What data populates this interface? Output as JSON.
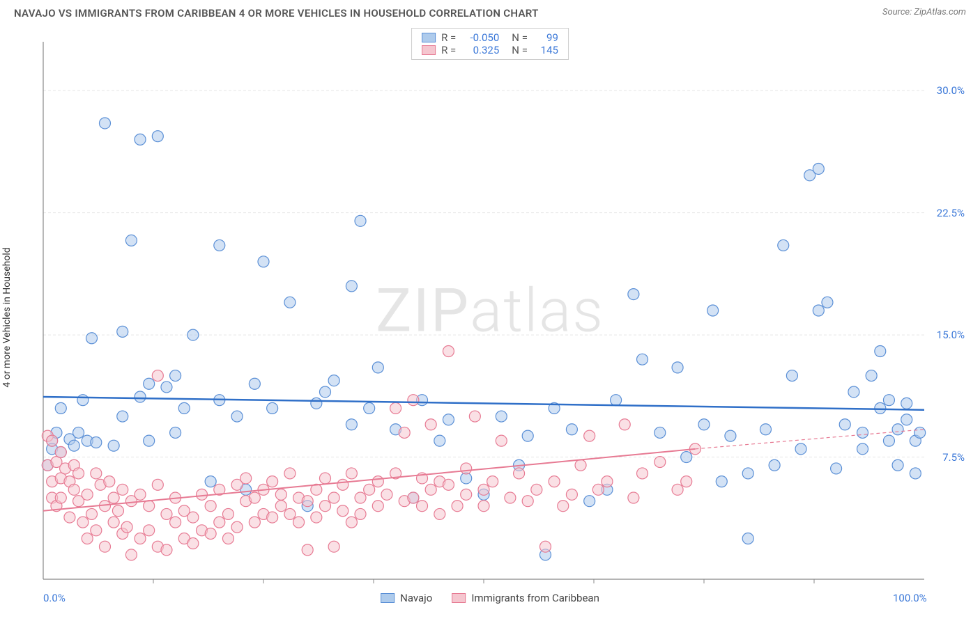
{
  "title": "NAVAJO VS IMMIGRANTS FROM CARIBBEAN 4 OR MORE VEHICLES IN HOUSEHOLD CORRELATION CHART",
  "source": "Source: ZipAtlas.com",
  "ylabel": "4 or more Vehicles in Household",
  "watermark": {
    "bold": "ZIP",
    "thin": "atlas"
  },
  "chart": {
    "type": "scatter",
    "xlim": [
      0,
      100
    ],
    "ylim": [
      0,
      33
    ],
    "xticks": [
      0,
      100
    ],
    "xtick_labels": [
      "0.0%",
      "100.0%"
    ],
    "yticks": [
      7.5,
      15.0,
      22.5,
      30.0
    ],
    "ytick_labels": [
      "7.5%",
      "15.0%",
      "22.5%",
      "30.0%"
    ],
    "grid_color": "#e5e5e5",
    "grid_dash": "4,3",
    "axis_color": "#888",
    "background_color": "#ffffff",
    "marker_radius": 8,
    "marker_opacity": 0.55,
    "marker_stroke_width": 1.2,
    "series": [
      {
        "name": "Navajo",
        "fill_color": "#aecbec",
        "stroke_color": "#5a8fd6",
        "line_color": "#2f6fc8",
        "line_width": 2.5,
        "trend": {
          "x1": 0,
          "y1": 11.2,
          "x2": 100,
          "y2": 10.4
        },
        "r_value": "-0.050",
        "n_value": "99",
        "points": [
          [
            1,
            8.5
          ],
          [
            1,
            8.0
          ],
          [
            1.5,
            9.0
          ],
          [
            0.5,
            7.0
          ],
          [
            2,
            7.8
          ],
          [
            2,
            10.5
          ],
          [
            3,
            8.6
          ],
          [
            3.5,
            8.2
          ],
          [
            4,
            9.0
          ],
          [
            4.5,
            11.0
          ],
          [
            5,
            8.5
          ],
          [
            5.5,
            14.8
          ],
          [
            6,
            8.4
          ],
          [
            7,
            28.0
          ],
          [
            8,
            8.2
          ],
          [
            9,
            10.0
          ],
          [
            9,
            15.2
          ],
          [
            10,
            20.8
          ],
          [
            11,
            27.0
          ],
          [
            11,
            11.2
          ],
          [
            12,
            8.5
          ],
          [
            12,
            12.0
          ],
          [
            13,
            27.2
          ],
          [
            14,
            11.8
          ],
          [
            15,
            9.0
          ],
          [
            15,
            12.5
          ],
          [
            16,
            10.5
          ],
          [
            17,
            15.0
          ],
          [
            19,
            6.0
          ],
          [
            20,
            20.5
          ],
          [
            20,
            11.0
          ],
          [
            22,
            10.0
          ],
          [
            23,
            5.5
          ],
          [
            24,
            12.0
          ],
          [
            25,
            19.5
          ],
          [
            26,
            10.5
          ],
          [
            28,
            17.0
          ],
          [
            30,
            4.5
          ],
          [
            31,
            10.8
          ],
          [
            32,
            11.5
          ],
          [
            33,
            12.2
          ],
          [
            35,
            9.5
          ],
          [
            35,
            18.0
          ],
          [
            36,
            22.0
          ],
          [
            37,
            10.5
          ],
          [
            38,
            13.0
          ],
          [
            40,
            9.2
          ],
          [
            42,
            5.0
          ],
          [
            43,
            11.0
          ],
          [
            45,
            8.5
          ],
          [
            46,
            9.8
          ],
          [
            48,
            6.2
          ],
          [
            50,
            5.2
          ],
          [
            52,
            10.0
          ],
          [
            54,
            7.0
          ],
          [
            55,
            8.8
          ],
          [
            57,
            1.5
          ],
          [
            58,
            10.5
          ],
          [
            60,
            9.2
          ],
          [
            62,
            4.8
          ],
          [
            64,
            5.5
          ],
          [
            65,
            11.0
          ],
          [
            67,
            17.5
          ],
          [
            68,
            13.5
          ],
          [
            70,
            9.0
          ],
          [
            72,
            13.0
          ],
          [
            73,
            7.5
          ],
          [
            75,
            9.5
          ],
          [
            76,
            16.5
          ],
          [
            77,
            6.0
          ],
          [
            78,
            8.8
          ],
          [
            80,
            6.5
          ],
          [
            80,
            2.5
          ],
          [
            82,
            9.2
          ],
          [
            83,
            7.0
          ],
          [
            84,
            20.5
          ],
          [
            85,
            12.5
          ],
          [
            86,
            8.0
          ],
          [
            87,
            24.8
          ],
          [
            88,
            25.2
          ],
          [
            88,
            16.5
          ],
          [
            89,
            17.0
          ],
          [
            90,
            6.8
          ],
          [
            91,
            9.5
          ],
          [
            92,
            11.5
          ],
          [
            93,
            9.0
          ],
          [
            93,
            8.0
          ],
          [
            94,
            12.5
          ],
          [
            95,
            10.5
          ],
          [
            95,
            14.0
          ],
          [
            96,
            11.0
          ],
          [
            96,
            8.5
          ],
          [
            97,
            9.2
          ],
          [
            97,
            7.0
          ],
          [
            98,
            9.8
          ],
          [
            98,
            10.8
          ],
          [
            99,
            8.5
          ],
          [
            99,
            6.5
          ],
          [
            99.5,
            9.0
          ]
        ]
      },
      {
        "name": "Immigrants from Caribbean",
        "fill_color": "#f5c6cf",
        "stroke_color": "#e77a93",
        "line_color": "#e77a93",
        "line_width": 2,
        "trend": {
          "x1": 0,
          "y1": 4.2,
          "x2": 74,
          "y2": 8.0
        },
        "trend_dash": {
          "x1": 74,
          "y1": 8.0,
          "x2": 100,
          "y2": 9.2
        },
        "r_value": "0.325",
        "n_value": "145",
        "points": [
          [
            0.5,
            8.8
          ],
          [
            0.5,
            7.0
          ],
          [
            1,
            8.5
          ],
          [
            1,
            6.0
          ],
          [
            1,
            5.0
          ],
          [
            1.5,
            7.2
          ],
          [
            1.5,
            4.5
          ],
          [
            2,
            7.8
          ],
          [
            2,
            6.2
          ],
          [
            2,
            5.0
          ],
          [
            2.5,
            6.8
          ],
          [
            3,
            6.0
          ],
          [
            3,
            3.8
          ],
          [
            3.5,
            7.0
          ],
          [
            3.5,
            5.5
          ],
          [
            4,
            4.8
          ],
          [
            4,
            6.5
          ],
          [
            4.5,
            3.5
          ],
          [
            5,
            5.2
          ],
          [
            5,
            2.5
          ],
          [
            5.5,
            4.0
          ],
          [
            6,
            6.5
          ],
          [
            6,
            3.0
          ],
          [
            6.5,
            5.8
          ],
          [
            7,
            4.5
          ],
          [
            7,
            2.0
          ],
          [
            7.5,
            6.0
          ],
          [
            8,
            3.5
          ],
          [
            8,
            5.0
          ],
          [
            8.5,
            4.2
          ],
          [
            9,
            5.5
          ],
          [
            9,
            2.8
          ],
          [
            9.5,
            3.2
          ],
          [
            10,
            1.5
          ],
          [
            10,
            4.8
          ],
          [
            11,
            2.5
          ],
          [
            11,
            5.2
          ],
          [
            12,
            3.0
          ],
          [
            12,
            4.5
          ],
          [
            13,
            2.0
          ],
          [
            13,
            5.8
          ],
          [
            13,
            12.5
          ],
          [
            14,
            1.8
          ],
          [
            14,
            4.0
          ],
          [
            15,
            3.5
          ],
          [
            15,
            5.0
          ],
          [
            16,
            2.5
          ],
          [
            16,
            4.2
          ],
          [
            17,
            3.8
          ],
          [
            17,
            2.2
          ],
          [
            18,
            5.2
          ],
          [
            18,
            3.0
          ],
          [
            19,
            4.5
          ],
          [
            19,
            2.8
          ],
          [
            20,
            5.5
          ],
          [
            20,
            3.5
          ],
          [
            21,
            4.0
          ],
          [
            21,
            2.5
          ],
          [
            22,
            5.8
          ],
          [
            22,
            3.2
          ],
          [
            23,
            4.8
          ],
          [
            23,
            6.2
          ],
          [
            24,
            5.0
          ],
          [
            24,
            3.5
          ],
          [
            25,
            4.0
          ],
          [
            25,
            5.5
          ],
          [
            26,
            6.0
          ],
          [
            26,
            3.8
          ],
          [
            27,
            4.5
          ],
          [
            27,
            5.2
          ],
          [
            28,
            6.5
          ],
          [
            28,
            4.0
          ],
          [
            29,
            5.0
          ],
          [
            29,
            3.5
          ],
          [
            30,
            1.8
          ],
          [
            30,
            4.8
          ],
          [
            31,
            5.5
          ],
          [
            31,
            3.8
          ],
          [
            32,
            6.2
          ],
          [
            32,
            4.5
          ],
          [
            33,
            5.0
          ],
          [
            33,
            2.0
          ],
          [
            34,
            4.2
          ],
          [
            34,
            5.8
          ],
          [
            35,
            6.5
          ],
          [
            35,
            3.5
          ],
          [
            36,
            5.0
          ],
          [
            36,
            4.0
          ],
          [
            37,
            5.5
          ],
          [
            38,
            6.0
          ],
          [
            38,
            4.5
          ],
          [
            39,
            5.2
          ],
          [
            40,
            6.5
          ],
          [
            40,
            10.5
          ],
          [
            41,
            4.8
          ],
          [
            41,
            9.0
          ],
          [
            42,
            5.0
          ],
          [
            42,
            11.0
          ],
          [
            43,
            6.2
          ],
          [
            43,
            4.5
          ],
          [
            44,
            5.5
          ],
          [
            44,
            9.5
          ],
          [
            45,
            6.0
          ],
          [
            45,
            4.0
          ],
          [
            46,
            5.8
          ],
          [
            46,
            14.0
          ],
          [
            47,
            4.5
          ],
          [
            48,
            5.2
          ],
          [
            48,
            6.8
          ],
          [
            49,
            10.0
          ],
          [
            50,
            5.5
          ],
          [
            50,
            4.5
          ],
          [
            51,
            6.0
          ],
          [
            52,
            8.5
          ],
          [
            53,
            5.0
          ],
          [
            54,
            6.5
          ],
          [
            55,
            4.8
          ],
          [
            56,
            5.5
          ],
          [
            57,
            2.0
          ],
          [
            58,
            6.0
          ],
          [
            59,
            4.5
          ],
          [
            60,
            5.2
          ],
          [
            61,
            7.0
          ],
          [
            62,
            8.8
          ],
          [
            63,
            5.5
          ],
          [
            64,
            6.0
          ],
          [
            66,
            9.5
          ],
          [
            67,
            5.0
          ],
          [
            68,
            6.5
          ],
          [
            70,
            7.2
          ],
          [
            72,
            5.5
          ],
          [
            73,
            6.0
          ],
          [
            74,
            8.0
          ]
        ]
      }
    ]
  },
  "legend_top": {
    "rows": [
      {
        "swatch_fill": "#aecbec",
        "swatch_stroke": "#5a8fd6",
        "r_label": "R =",
        "r_val": "-0.050",
        "n_label": "N =",
        "n_val": "99"
      },
      {
        "swatch_fill": "#f5c6cf",
        "swatch_stroke": "#e77a93",
        "r_label": "R =",
        "r_val": "0.325",
        "n_label": "N =",
        "n_val": "145"
      }
    ],
    "text_color": "#555",
    "value_color": "#3b78d8"
  },
  "legend_bottom": [
    {
      "swatch_fill": "#aecbec",
      "swatch_stroke": "#5a8fd6",
      "label": "Navajo"
    },
    {
      "swatch_fill": "#f5c6cf",
      "swatch_stroke": "#e77a93",
      "label": "Immigrants from Caribbean"
    }
  ]
}
